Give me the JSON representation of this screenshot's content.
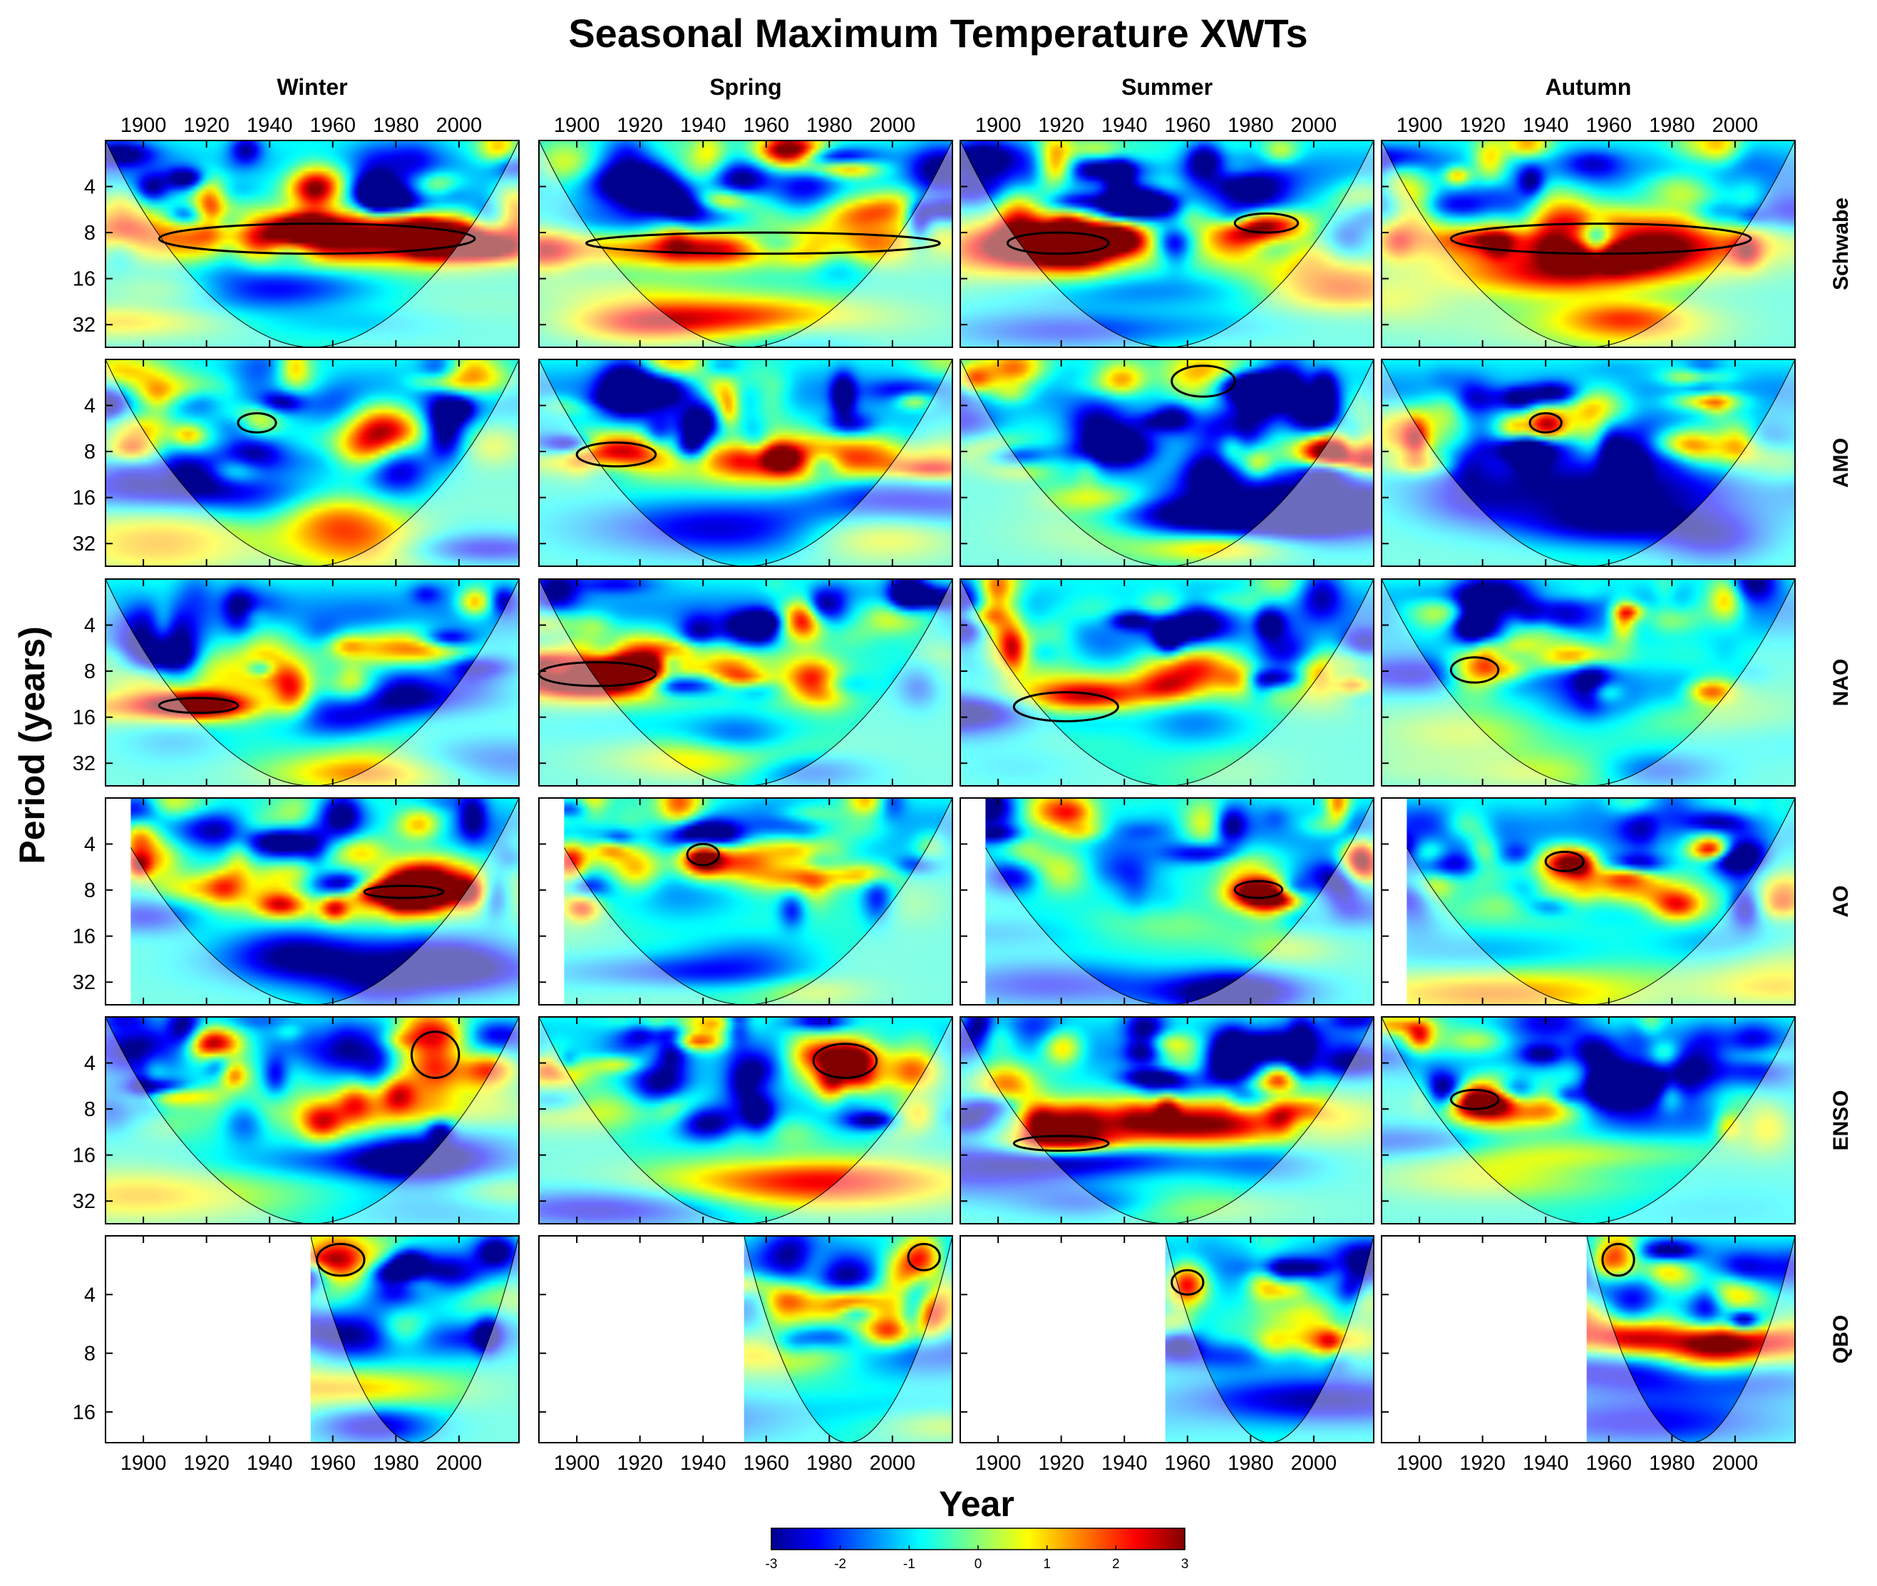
{
  "chart_data": {
    "type": "heatmap",
    "title": "Seasonal Maximum Temperature XWTs",
    "xlabel": "Year",
    "ylabel": "Period (years)",
    "seasons": [
      "Winter",
      "Spring",
      "Summer",
      "Autumn"
    ],
    "indices": [
      "Schwabe",
      "AMO",
      "NAO",
      "AO",
      "ENSO",
      "QBO"
    ],
    "x_ticks": [
      "1900",
      "1920",
      "1940",
      "1960",
      "1980",
      "2000"
    ],
    "x_range": [
      1888,
      2019
    ],
    "y_ticks": [
      "4",
      "8",
      "16",
      "32"
    ],
    "y_ticks_qbo": [
      "4",
      "8",
      "16"
    ],
    "y_range": [
      2,
      45
    ],
    "y_range_qbo": [
      2,
      23
    ],
    "y_scale": "log2, reversed",
    "data_start_year": {
      "Schwabe": 1888,
      "AMO": 1888,
      "NAO": 1888,
      "AO": 1896,
      "ENSO": 1888,
      "QBO": 1953
    },
    "colorbar": {
      "ticks": [
        "-3",
        "-2",
        "-1",
        "0",
        "1",
        "2",
        "3"
      ],
      "range": [
        -3,
        3
      ],
      "colormap": "jet",
      "colors": [
        "#00008f",
        "#0000ff",
        "#00ffff",
        "#ffff00",
        "#ff0000",
        "#800000"
      ]
    },
    "significant_regions": [
      {
        "index": "Schwabe",
        "season": "Winter",
        "year": [
          1905,
          2005
        ],
        "period": [
          7,
          11
        ]
      },
      {
        "index": "Schwabe",
        "season": "Spring",
        "year": [
          1903,
          2015
        ],
        "period": [
          8,
          11
        ]
      },
      {
        "index": "Schwabe",
        "season": "Summer",
        "year": [
          1903,
          1935
        ],
        "period": [
          8,
          11
        ]
      },
      {
        "index": "Schwabe",
        "season": "Summer",
        "year": [
          1975,
          1995
        ],
        "period": [
          6,
          8
        ]
      },
      {
        "index": "Schwabe",
        "season": "Autumn",
        "year": [
          1910,
          2005
        ],
        "period": [
          7,
          11
        ]
      },
      {
        "index": "AMO",
        "season": "Winter",
        "year": [
          1930,
          1942
        ],
        "period": [
          4.5,
          6
        ]
      },
      {
        "index": "AMO",
        "season": "Spring",
        "year": [
          1900,
          1925
        ],
        "period": [
          7,
          10
        ]
      },
      {
        "index": "AMO",
        "season": "Summer",
        "year": [
          1955,
          1975
        ],
        "period": [
          2.2,
          3.5
        ]
      },
      {
        "index": "AMO",
        "season": "Autumn",
        "year": [
          1935,
          1945
        ],
        "period": [
          4.5,
          6
        ]
      },
      {
        "index": "NAO",
        "season": "Winter",
        "year": [
          1905,
          1930
        ],
        "period": [
          12,
          15
        ]
      },
      {
        "index": "NAO",
        "season": "Spring",
        "year": [
          1888,
          1925
        ],
        "period": [
          7,
          10
        ]
      },
      {
        "index": "NAO",
        "season": "Summer",
        "year": [
          1905,
          1938
        ],
        "period": [
          11,
          17
        ]
      },
      {
        "index": "NAO",
        "season": "Autumn",
        "year": [
          1910,
          1925
        ],
        "period": [
          6.5,
          9.5
        ]
      },
      {
        "index": "AO",
        "season": "Winter",
        "year": [
          1970,
          1995
        ],
        "period": [
          7.5,
          9
        ]
      },
      {
        "index": "AO",
        "season": "Spring",
        "year": [
          1935,
          1945
        ],
        "period": [
          4,
          5.5
        ]
      },
      {
        "index": "AO",
        "season": "Summer",
        "year": [
          1975,
          1990
        ],
        "period": [
          7,
          9
        ]
      },
      {
        "index": "AO",
        "season": "Autumn",
        "year": [
          1940,
          1952
        ],
        "period": [
          4.5,
          6
        ]
      },
      {
        "index": "ENSO",
        "season": "Winter",
        "year": [
          1985,
          2000
        ],
        "period": [
          2.5,
          5
        ]
      },
      {
        "index": "ENSO",
        "season": "Spring",
        "year": [
          1975,
          1995
        ],
        "period": [
          3,
          5
        ]
      },
      {
        "index": "ENSO",
        "season": "Summer",
        "year": [
          1905,
          1935
        ],
        "period": [
          12,
          15
        ]
      },
      {
        "index": "ENSO",
        "season": "Autumn",
        "year": [
          1910,
          1925
        ],
        "period": [
          6,
          8
        ]
      },
      {
        "index": "QBO",
        "season": "Winter",
        "year": [
          1955,
          1970
        ],
        "period": [
          2.2,
          3.2
        ]
      },
      {
        "index": "QBO",
        "season": "Spring",
        "year": [
          2005,
          2015
        ],
        "period": [
          2.2,
          3
        ]
      },
      {
        "index": "QBO",
        "season": "Summer",
        "year": [
          1955,
          1965
        ],
        "period": [
          3,
          4
        ]
      },
      {
        "index": "QBO",
        "season": "Autumn",
        "year": [
          1958,
          1968
        ],
        "period": [
          2.2,
          3.2
        ]
      }
    ]
  }
}
